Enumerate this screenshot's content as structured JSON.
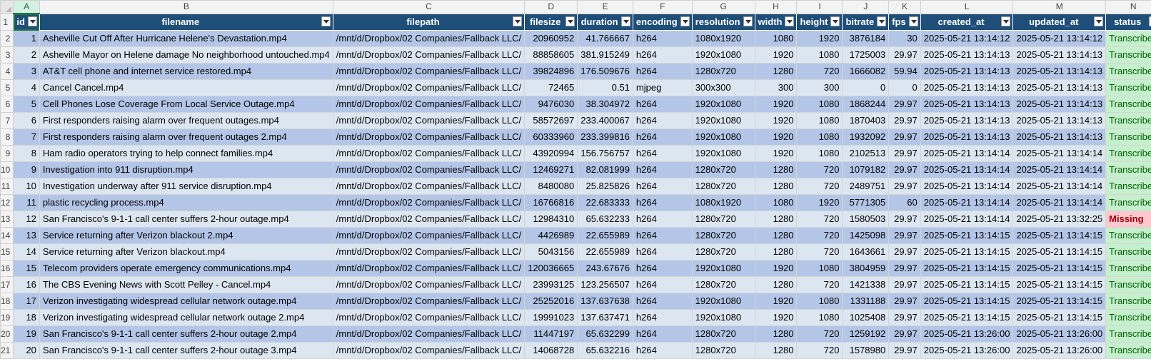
{
  "column_letters": [
    "A",
    "B",
    "C",
    "D",
    "E",
    "F",
    "G",
    "H",
    "I",
    "J",
    "K",
    "L",
    "M",
    "N"
  ],
  "headers": [
    "id",
    "filename",
    "filepath",
    "filesize",
    "duration",
    "encoding",
    "resolution",
    "width",
    "height",
    "bitrate",
    "fps",
    "created_at",
    "updated_at",
    "status"
  ],
  "rows": [
    {
      "rownum": "1",
      "id": "1",
      "filename": "Asheville Cut Off After Hurricane Helene's Devastation.mp4",
      "filepath": "/mnt/d/Dropbox/02 Companies/Fallback LLC/",
      "filesize": "20960952",
      "duration": "41.766667",
      "encoding": "h264",
      "resolution": "1080x1920",
      "width": "1080",
      "height": "1920",
      "bitrate": "3876184",
      "fps": "30",
      "created_at": "2025-05-21 13:14:12",
      "updated_at": "2025-05-21 13:14:12",
      "status": "Transcribed"
    },
    {
      "rownum": "2",
      "id": "2",
      "filename": "Asheville Mayor on Helene damage No neighborhood untouched.mp4",
      "filepath": "/mnt/d/Dropbox/02 Companies/Fallback LLC/",
      "filesize": "88858605",
      "duration": "381.915249",
      "encoding": "h264",
      "resolution": "1920x1080",
      "width": "1920",
      "height": "1080",
      "bitrate": "1725003",
      "fps": "29.97",
      "created_at": "2025-05-21 13:14:13",
      "updated_at": "2025-05-21 13:14:13",
      "status": "Transcribed"
    },
    {
      "rownum": "3",
      "id": "3",
      "filename": "AT&T cell phone and internet service restored.mp4",
      "filepath": "/mnt/d/Dropbox/02 Companies/Fallback LLC/",
      "filesize": "39824896",
      "duration": "176.509676",
      "encoding": "h264",
      "resolution": "1280x720",
      "width": "1280",
      "height": "720",
      "bitrate": "1666082",
      "fps": "59.94",
      "created_at": "2025-05-21 13:14:13",
      "updated_at": "2025-05-21 13:14:13",
      "status": "Transcribed"
    },
    {
      "rownum": "4",
      "id": "4",
      "filename": "Cancel Cancel.mp4",
      "filepath": "/mnt/d/Dropbox/02 Companies/Fallback LLC/",
      "filesize": "72465",
      "duration": "0.51",
      "encoding": "mjpeg",
      "resolution": "300x300",
      "width": "300",
      "height": "300",
      "bitrate": "0",
      "fps": "0",
      "created_at": "2025-05-21 13:14:13",
      "updated_at": "2025-05-21 13:14:13",
      "status": "Transcribed"
    },
    {
      "rownum": "5",
      "id": "5",
      "filename": "Cell Phones Lose Coverage From Local Service Outage.mp4",
      "filepath": "/mnt/d/Dropbox/02 Companies/Fallback LLC/",
      "filesize": "9476030",
      "duration": "38.304972",
      "encoding": "h264",
      "resolution": "1920x1080",
      "width": "1920",
      "height": "1080",
      "bitrate": "1868244",
      "fps": "29.97",
      "created_at": "2025-05-21 13:14:13",
      "updated_at": "2025-05-21 13:14:13",
      "status": "Transcribed"
    },
    {
      "rownum": "6",
      "id": "6",
      "filename": "First responders raising alarm over frequent outages.mp4",
      "filepath": "/mnt/d/Dropbox/02 Companies/Fallback LLC/",
      "filesize": "58572697",
      "duration": "233.400067",
      "encoding": "h264",
      "resolution": "1920x1080",
      "width": "1920",
      "height": "1080",
      "bitrate": "1870403",
      "fps": "29.97",
      "created_at": "2025-05-21 13:14:13",
      "updated_at": "2025-05-21 13:14:13",
      "status": "Transcribed"
    },
    {
      "rownum": "7",
      "id": "7",
      "filename": "First responders raising alarm over frequent outages 2.mp4",
      "filepath": "/mnt/d/Dropbox/02 Companies/Fallback LLC/",
      "filesize": "60333960",
      "duration": "233.399816",
      "encoding": "h264",
      "resolution": "1920x1080",
      "width": "1920",
      "height": "1080",
      "bitrate": "1932092",
      "fps": "29.97",
      "created_at": "2025-05-21 13:14:13",
      "updated_at": "2025-05-21 13:14:13",
      "status": "Transcribed"
    },
    {
      "rownum": "8",
      "id": "8",
      "filename": "Ham radio operators trying to help connect families.mp4",
      "filepath": "/mnt/d/Dropbox/02 Companies/Fallback LLC/",
      "filesize": "43920994",
      "duration": "156.756757",
      "encoding": "h264",
      "resolution": "1920x1080",
      "width": "1920",
      "height": "1080",
      "bitrate": "2102513",
      "fps": "29.97",
      "created_at": "2025-05-21 13:14:14",
      "updated_at": "2025-05-21 13:14:14",
      "status": "Transcribed"
    },
    {
      "rownum": "9",
      "id": "9",
      "filename": "Investigation into 911 disruption.mp4",
      "filepath": "/mnt/d/Dropbox/02 Companies/Fallback LLC/",
      "filesize": "12469271",
      "duration": "82.081999",
      "encoding": "h264",
      "resolution": "1280x720",
      "width": "1280",
      "height": "720",
      "bitrate": "1079182",
      "fps": "29.97",
      "created_at": "2025-05-21 13:14:14",
      "updated_at": "2025-05-21 13:14:14",
      "status": "Transcribed"
    },
    {
      "rownum": "10",
      "id": "10",
      "filename": "Investigation underway after 911 service disruption.mp4",
      "filepath": "/mnt/d/Dropbox/02 Companies/Fallback LLC/",
      "filesize": "8480080",
      "duration": "25.825826",
      "encoding": "h264",
      "resolution": "1280x720",
      "width": "1280",
      "height": "720",
      "bitrate": "2489751",
      "fps": "29.97",
      "created_at": "2025-05-21 13:14:14",
      "updated_at": "2025-05-21 13:14:14",
      "status": "Transcribed"
    },
    {
      "rownum": "11",
      "id": "11",
      "filename": "plastic recycling process.mp4",
      "filepath": "/mnt/d/Dropbox/02 Companies/Fallback LLC/",
      "filesize": "16766816",
      "duration": "22.683333",
      "encoding": "h264",
      "resolution": "1080x1920",
      "width": "1080",
      "height": "1920",
      "bitrate": "5771305",
      "fps": "60",
      "created_at": "2025-05-21 13:14:14",
      "updated_at": "2025-05-21 13:14:14",
      "status": "Transcribed"
    },
    {
      "rownum": "12",
      "id": "12",
      "filename": "San Francisco's 9-1-1 call center suffers 2-hour outage.mp4",
      "filepath": "/mnt/d/Dropbox/02 Companies/Fallback LLC/",
      "filesize": "12984310",
      "duration": "65.632233",
      "encoding": "h264",
      "resolution": "1280x720",
      "width": "1280",
      "height": "720",
      "bitrate": "1580503",
      "fps": "29.97",
      "created_at": "2025-05-21 13:14:14",
      "updated_at": "2025-05-21 13:32:25",
      "status": "Missing"
    },
    {
      "rownum": "13",
      "id": "13",
      "filename": "Service returning after Verizon blackout 2.mp4",
      "filepath": "/mnt/d/Dropbox/02 Companies/Fallback LLC/",
      "filesize": "4426989",
      "duration": "22.655989",
      "encoding": "h264",
      "resolution": "1280x720",
      "width": "1280",
      "height": "720",
      "bitrate": "1425098",
      "fps": "29.97",
      "created_at": "2025-05-21 13:14:15",
      "updated_at": "2025-05-21 13:14:15",
      "status": "Transcribed"
    },
    {
      "rownum": "14",
      "id": "14",
      "filename": "Service returning after Verizon blackout.mp4",
      "filepath": "/mnt/d/Dropbox/02 Companies/Fallback LLC/",
      "filesize": "5043156",
      "duration": "22.655989",
      "encoding": "h264",
      "resolution": "1280x720",
      "width": "1280",
      "height": "720",
      "bitrate": "1643661",
      "fps": "29.97",
      "created_at": "2025-05-21 13:14:15",
      "updated_at": "2025-05-21 13:14:15",
      "status": "Transcribed"
    },
    {
      "rownum": "15",
      "id": "15",
      "filename": "Telecom providers operate emergency communications.mp4",
      "filepath": "/mnt/d/Dropbox/02 Companies/Fallback LLC/",
      "filesize": "120036665",
      "duration": "243.67676",
      "encoding": "h264",
      "resolution": "1920x1080",
      "width": "1920",
      "height": "1080",
      "bitrate": "3804959",
      "fps": "29.97",
      "created_at": "2025-05-21 13:14:15",
      "updated_at": "2025-05-21 13:14:15",
      "status": "Transcribed"
    },
    {
      "rownum": "16",
      "id": "16",
      "filename": "The CBS Evening News with Scott Pelley - Cancel.mp4",
      "filepath": "/mnt/d/Dropbox/02 Companies/Fallback LLC/",
      "filesize": "23993125",
      "duration": "123.256507",
      "encoding": "h264",
      "resolution": "1280x720",
      "width": "1280",
      "height": "720",
      "bitrate": "1421338",
      "fps": "29.97",
      "created_at": "2025-05-21 13:14:15",
      "updated_at": "2025-05-21 13:14:15",
      "status": "Transcribed"
    },
    {
      "rownum": "17",
      "id": "17",
      "filename": "Verizon investigating widespread cellular network outage.mp4",
      "filepath": "/mnt/d/Dropbox/02 Companies/Fallback LLC/",
      "filesize": "25252016",
      "duration": "137.637638",
      "encoding": "h264",
      "resolution": "1920x1080",
      "width": "1920",
      "height": "1080",
      "bitrate": "1331188",
      "fps": "29.97",
      "created_at": "2025-05-21 13:14:15",
      "updated_at": "2025-05-21 13:14:15",
      "status": "Transcribed"
    },
    {
      "rownum": "18",
      "id": "18",
      "filename": "Verizon investigating widespread cellular network outage 2.mp4",
      "filepath": "/mnt/d/Dropbox/02 Companies/Fallback LLC/",
      "filesize": "19991023",
      "duration": "137.637471",
      "encoding": "h264",
      "resolution": "1920x1080",
      "width": "1920",
      "height": "1080",
      "bitrate": "1025408",
      "fps": "29.97",
      "created_at": "2025-05-21 13:14:15",
      "updated_at": "2025-05-21 13:14:15",
      "status": "Transcribed"
    },
    {
      "rownum": "19",
      "id": "19",
      "filename": "San Francisco's 9-1-1 call center suffers 2-hour outage 2.mp4",
      "filepath": "/mnt/d/Dropbox/02 Companies/Fallback LLC/",
      "filesize": "11447197",
      "duration": "65.632299",
      "encoding": "h264",
      "resolution": "1280x720",
      "width": "1280",
      "height": "720",
      "bitrate": "1259192",
      "fps": "29.97",
      "created_at": "2025-05-21 13:26:00",
      "updated_at": "2025-05-21 13:26:00",
      "status": "Transcribed"
    },
    {
      "rownum": "20",
      "id": "20",
      "filename": "San Francisco's 9-1-1 call center suffers 2-hour outage 3.mp4",
      "filepath": "/mnt/d/Dropbox/02 Companies/Fallback LLC/",
      "filesize": "14068728",
      "duration": "65.632216",
      "encoding": "h264",
      "resolution": "1280x720",
      "width": "1280",
      "height": "720",
      "bitrate": "1578980",
      "fps": "29.97",
      "created_at": "2025-05-21 13:26:00",
      "updated_at": "2025-05-21 13:26:00",
      "status": "Transcribed"
    }
  ],
  "status_colors": {
    "Transcribed": "#c6efce",
    "Missing": "#ffc7ce"
  },
  "header_color": "#1f4e79",
  "band_colors": [
    "#b4c6e7",
    "#dce6f1"
  ]
}
